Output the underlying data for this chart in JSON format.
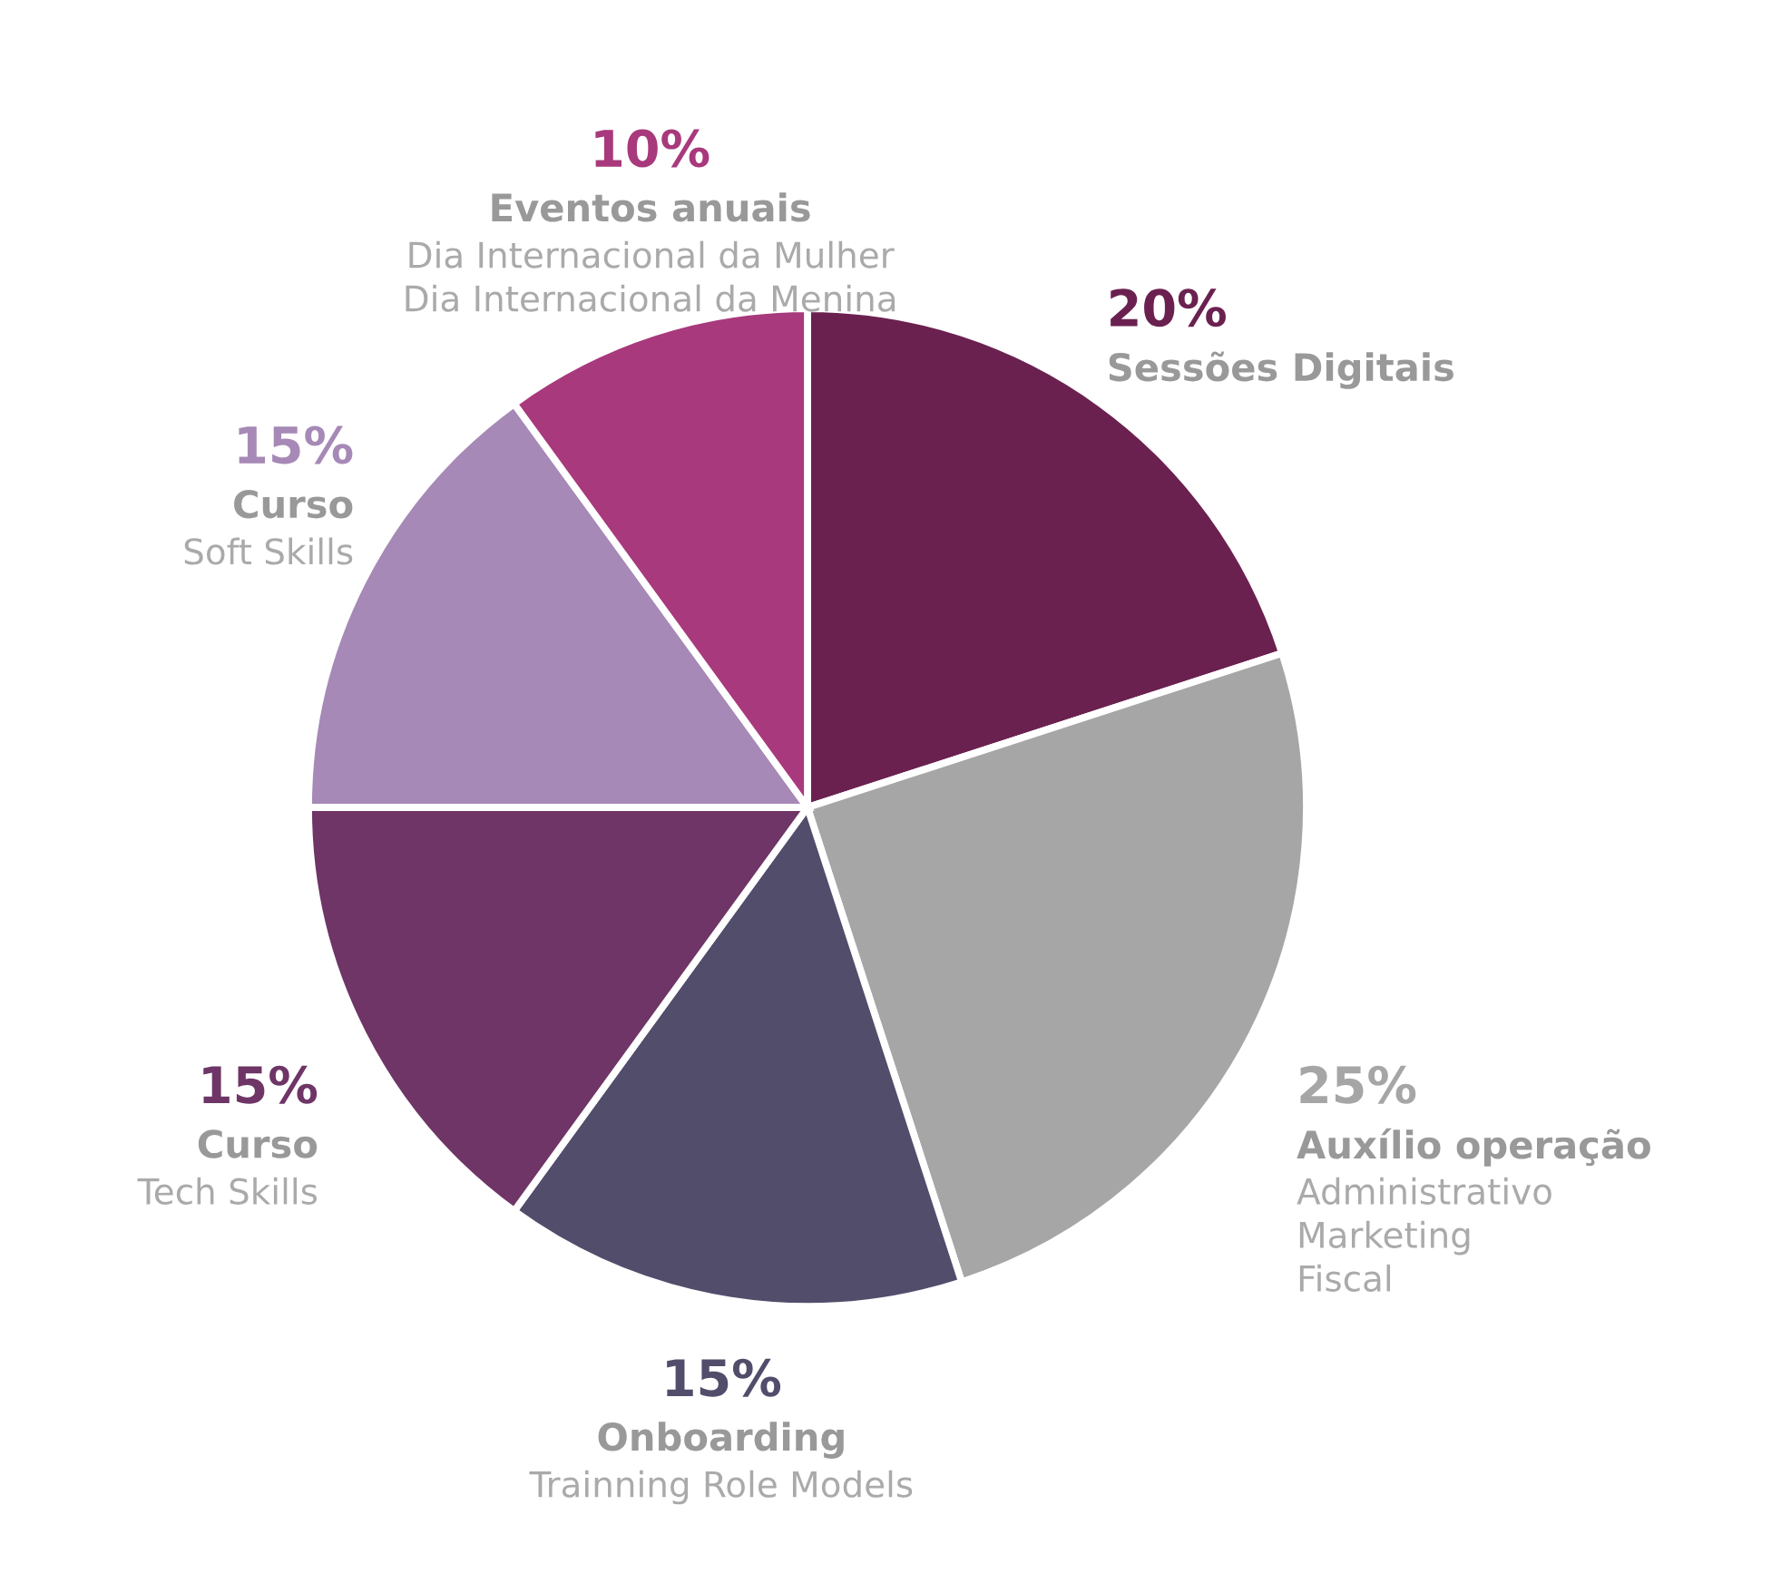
{
  "chart_data": {
    "type": "pie",
    "categories": [
      "Sessões Digitais",
      "Auxílio operação",
      "Onboarding",
      "Curso",
      "Curso",
      "Eventos anuais"
    ],
    "values": [
      20,
      25,
      15,
      15,
      15,
      10
    ],
    "value_labels": [
      "20%",
      "25%",
      "15%",
      "15%",
      "15%",
      "10%"
    ],
    "colors": [
      "#6b2150",
      "#a6a6a6",
      "#524d6b",
      "#6e3566",
      "#a689b6",
      "#a8397c"
    ],
    "annotations": [
      null,
      "Administrativo\nMarketing\nFiscal",
      "Trainning Role Models",
      "Tech Skills",
      "Soft Skills",
      "Dia Internacional da Mulher\nDia Internacional da Menina"
    ],
    "legend": false
  }
}
